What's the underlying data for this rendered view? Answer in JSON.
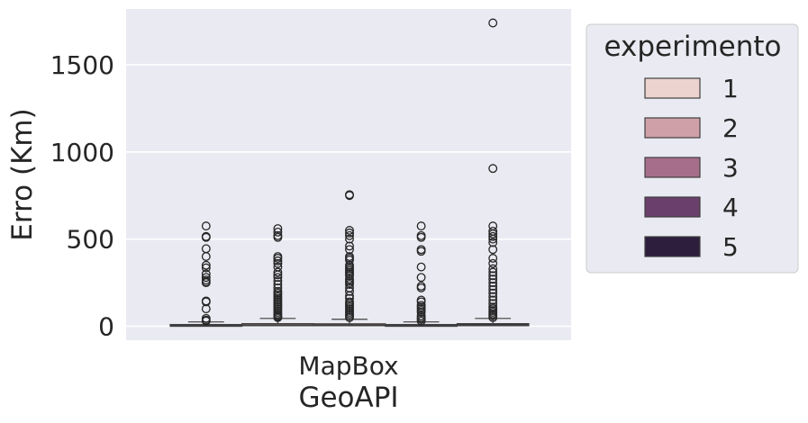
{
  "chart_data": {
    "type": "box",
    "categories": [
      "MapBox"
    ],
    "xlabel": "GeoAPI",
    "ylabel": "Erro (Km)",
    "ylim": [
      -80,
      1820
    ],
    "yticks": [
      0,
      500,
      1000,
      1500
    ],
    "grid": true,
    "legend": {
      "title": "experimento",
      "placement": "outside-right"
    },
    "series": [
      {
        "name": "1",
        "color": "#ecd3d0",
        "box": {
          "whislo": 0,
          "q1": 2,
          "med": 5,
          "q3": 10,
          "whishi": 25
        },
        "fliers": [
          575,
          515,
          510,
          445,
          400,
          350,
          335,
          300,
          280,
          265,
          255,
          250,
          145,
          140,
          100,
          45,
          35,
          30
        ]
      },
      {
        "name": "2",
        "color": "#d0a0a8",
        "box": {
          "whislo": 0,
          "q1": 3,
          "med": 8,
          "q3": 15,
          "whishi": 45
        },
        "fliers": [
          560,
          540,
          520,
          510,
          400,
          390,
          375,
          360,
          340,
          310,
          295,
          280,
          260,
          240,
          220,
          200,
          190,
          180,
          170,
          160,
          150,
          140,
          130,
          120,
          110,
          100,
          90,
          80,
          70,
          60,
          55,
          50
        ]
      },
      {
        "name": "3",
        "color": "#a66e8b",
        "box": {
          "whislo": 0,
          "q1": 3,
          "med": 7,
          "q3": 14,
          "whishi": 40
        },
        "fliers": [
          755,
          750,
          550,
          535,
          520,
          500,
          460,
          440,
          400,
          390,
          380,
          350,
          340,
          330,
          320,
          310,
          300,
          290,
          270,
          260,
          250,
          240,
          220,
          200,
          175,
          160,
          140,
          130,
          120,
          110,
          100,
          90,
          80,
          70,
          60,
          50
        ]
      },
      {
        "name": "4",
        "color": "#6a3f6b",
        "box": {
          "whislo": 0,
          "q1": 2,
          "med": 5,
          "q3": 10,
          "whishi": 25
        },
        "fliers": [
          575,
          520,
          510,
          440,
          430,
          340,
          280,
          230,
          220,
          150,
          140,
          120,
          110,
          100,
          90,
          80,
          60,
          50,
          40,
          30
        ]
      },
      {
        "name": "5",
        "color": "#2d1e3e",
        "box": {
          "whislo": 0,
          "q1": 3,
          "med": 8,
          "q3": 15,
          "whishi": 45
        },
        "fliers": [
          1740,
          905,
          575,
          545,
          530,
          515,
          500,
          480,
          440,
          390,
          360,
          330,
          310,
          290,
          270,
          250,
          230,
          210,
          190,
          170,
          150,
          130,
          110,
          100,
          90,
          80,
          70,
          60,
          50
        ]
      }
    ]
  }
}
